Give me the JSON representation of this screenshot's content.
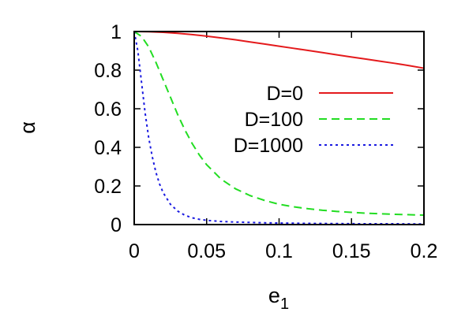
{
  "chart_data": {
    "type": "line",
    "title": "",
    "xlabel": "e",
    "xlabel_subscript": "1",
    "ylabel": "α",
    "xlim": [
      0,
      0.2
    ],
    "ylim": [
      0,
      1
    ],
    "xticks": [
      "0",
      "0.05",
      "0.1",
      "0.15",
      "0.2"
    ],
    "xtick_values": [
      0,
      0.05,
      0.1,
      0.15,
      0.2
    ],
    "yticks": [
      "0",
      "0.2",
      "0.4",
      "0.6",
      "0.8",
      "1"
    ],
    "ytick_values": [
      0,
      0.2,
      0.4,
      0.6,
      0.8,
      1
    ],
    "grid": false,
    "legend_position": "right",
    "series": [
      {
        "name": "D=0",
        "color": "#e41a1c",
        "dash": "solid",
        "x": [
          0,
          0.01,
          0.02,
          0.03,
          0.04,
          0.05,
          0.06,
          0.07,
          0.08,
          0.09,
          0.1,
          0.11,
          0.12,
          0.13,
          0.14,
          0.15,
          0.16,
          0.17,
          0.18,
          0.19,
          0.2
        ],
        "y": [
          1.0,
          0.999,
          0.996,
          0.991,
          0.984,
          0.976,
          0.967,
          0.957,
          0.946,
          0.935,
          0.924,
          0.913,
          0.902,
          0.891,
          0.879,
          0.868,
          0.857,
          0.846,
          0.835,
          0.823,
          0.81
        ]
      },
      {
        "name": "D=100",
        "color": "#22dd22",
        "dash": "dashed",
        "x": [
          0,
          0.005,
          0.01,
          0.015,
          0.02,
          0.025,
          0.03,
          0.035,
          0.04,
          0.045,
          0.05,
          0.06,
          0.07,
          0.08,
          0.09,
          0.1,
          0.11,
          0.12,
          0.13,
          0.14,
          0.15,
          0.16,
          0.17,
          0.18,
          0.19,
          0.2
        ],
        "y": [
          1.0,
          0.975,
          0.92,
          0.84,
          0.75,
          0.66,
          0.57,
          0.49,
          0.42,
          0.36,
          0.31,
          0.235,
          0.185,
          0.15,
          0.125,
          0.105,
          0.092,
          0.082,
          0.074,
          0.068,
          0.063,
          0.059,
          0.056,
          0.053,
          0.051,
          0.049
        ]
      },
      {
        "name": "D=1000",
        "color": "#1a1ae0",
        "dash": "dotted",
        "x": [
          0,
          0.0025,
          0.005,
          0.0075,
          0.01,
          0.0125,
          0.015,
          0.0175,
          0.02,
          0.025,
          0.03,
          0.035,
          0.04,
          0.045,
          0.05,
          0.06,
          0.07,
          0.08,
          0.09,
          0.1,
          0.12,
          0.14,
          0.16,
          0.18,
          0.2
        ],
        "y": [
          1.0,
          0.9,
          0.74,
          0.58,
          0.45,
          0.35,
          0.27,
          0.21,
          0.165,
          0.105,
          0.07,
          0.048,
          0.035,
          0.027,
          0.022,
          0.016,
          0.013,
          0.011,
          0.009,
          0.008,
          0.006,
          0.005,
          0.004,
          0.004,
          0.003
        ]
      }
    ]
  }
}
